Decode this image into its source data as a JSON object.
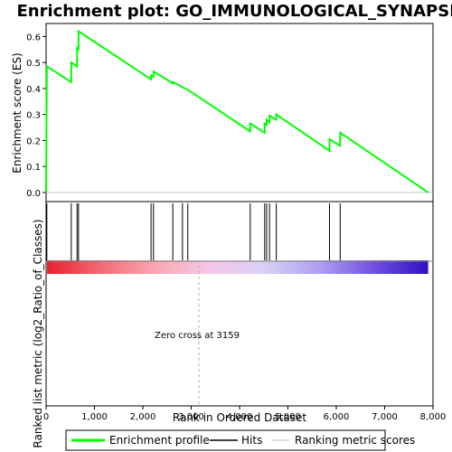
{
  "chart_data": {
    "type": "line",
    "title": "Enrichment plot: GO_IMMUNOLOGICAL_SYNAPSE",
    "xlabel": "Rank in Ordered Dataset",
    "ylabel_top": "Enrichment score (ES)",
    "ylabel_bottom": "Ranked list metric (log2_Ratio_of_Classes)",
    "xlim": [
      0,
      8000
    ],
    "ylim_top": [
      0,
      0.6
    ],
    "x_ticks": [
      0,
      1000,
      2000,
      3000,
      4000,
      5000,
      6000,
      7000,
      8000
    ],
    "x_tick_labels": [
      "0",
      "1,000",
      "2,000",
      "3,000",
      "4,000",
      "5,000",
      "6,000",
      "7,000",
      "8,000"
    ],
    "y_ticks": [
      0.0,
      0.1,
      0.2,
      0.3,
      0.4,
      0.5,
      0.6
    ],
    "y_tick_labels": [
      "0.0",
      "0.1",
      "0.2",
      "0.3",
      "0.4",
      "0.5",
      "0.6"
    ],
    "zero_cross_rank": 3159,
    "zero_cross_label": "Zero cross at 3159",
    "max_rank": 7900,
    "hits": [
      15,
      520,
      640,
      670,
      2170,
      2220,
      2620,
      2820,
      2930,
      4220,
      4520,
      4560,
      4620,
      4760,
      5860,
      6080
    ],
    "series": [
      {
        "name": "Enrichment profile",
        "color": "#00ff00",
        "points": [
          [
            0,
            0.0
          ],
          [
            15,
            0.485
          ],
          [
            520,
            0.425
          ],
          [
            521,
            0.5
          ],
          [
            640,
            0.485
          ],
          [
            641,
            0.555
          ],
          [
            670,
            0.55
          ],
          [
            671,
            0.62
          ],
          [
            2170,
            0.435
          ],
          [
            2171,
            0.45
          ],
          [
            2220,
            0.445
          ],
          [
            2221,
            0.465
          ],
          [
            2620,
            0.42
          ],
          [
            2621,
            0.425
          ],
          [
            2820,
            0.405
          ],
          [
            2821,
            0.405
          ],
          [
            2930,
            0.395
          ],
          [
            2931,
            0.395
          ],
          [
            4220,
            0.235
          ],
          [
            4221,
            0.265
          ],
          [
            4520,
            0.23
          ],
          [
            4521,
            0.265
          ],
          [
            4560,
            0.26
          ],
          [
            4561,
            0.28
          ],
          [
            4620,
            0.27
          ],
          [
            4621,
            0.295
          ],
          [
            4760,
            0.28
          ],
          [
            4761,
            0.3
          ],
          [
            5860,
            0.16
          ],
          [
            5861,
            0.205
          ],
          [
            6080,
            0.18
          ],
          [
            6081,
            0.23
          ],
          [
            7900,
            0.0
          ]
        ]
      }
    ],
    "metric_gradient_colors": [
      "#e8212e",
      "#f26b75",
      "#f9a8b4",
      "#f5c8e8",
      "#d8d0f5",
      "#b0a0f0",
      "#7050e0",
      "#3010c0"
    ],
    "legend": [
      {
        "label": "Enrichment profile",
        "color": "#00ff00",
        "style": "line-thick"
      },
      {
        "label": "Hits",
        "color": "#000000",
        "style": "line"
      },
      {
        "label": "Ranking metric scores",
        "color": "#c0c0c0",
        "style": "line"
      }
    ],
    "legend_placement": "bottom"
  }
}
